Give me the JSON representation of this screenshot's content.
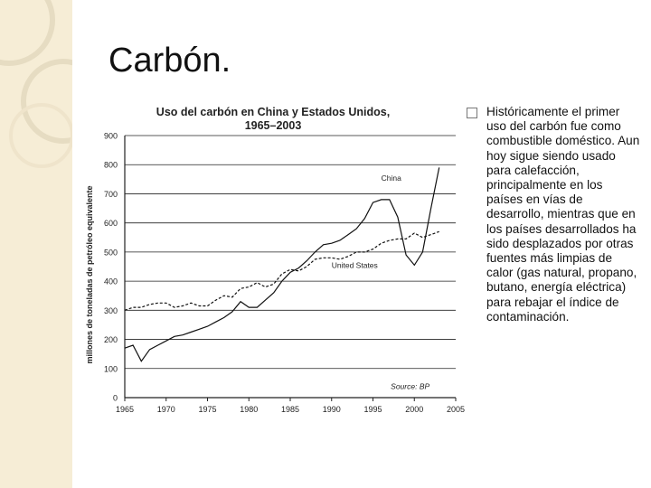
{
  "slide": {
    "title": "Carbón.",
    "bullet_icon": "square-bullet-icon",
    "bullet_text": "Históricamente el primer uso del carbón fue como combustible doméstico. Aun hoy sigue siendo usado para calefacción, principalmente en los países en vías de desarrollo, mientras que en los países desarrollados ha sido desplazados por otras fuentes más limpias de calor (gas natural, propano, butano, energía eléctrica) para rebajar el índice de contaminación."
  },
  "colors": {
    "band": "#f6edd6",
    "rings": "#e6dcc2",
    "axes": "#222222",
    "title": "#222222"
  },
  "chart_data": {
    "type": "line",
    "title": "Uso del carbón en China y Estados Unidos, 1965–2003",
    "xlabel": "",
    "ylabel": "millones de toneladas de petróleo equivalente",
    "xlim": [
      1965,
      2005
    ],
    "ylim": [
      0,
      900
    ],
    "x_ticks": [
      1965,
      1970,
      1975,
      1980,
      1985,
      1990,
      1995,
      2000,
      2005
    ],
    "y_ticks": [
      0,
      100,
      200,
      300,
      400,
      500,
      600,
      700,
      800,
      900
    ],
    "grid": "horizontal",
    "source": "Source: BP",
    "series": [
      {
        "name": "China",
        "line_style": "solid",
        "x": [
          1965,
          1966,
          1967,
          1968,
          1969,
          1970,
          1971,
          1972,
          1973,
          1974,
          1975,
          1976,
          1977,
          1978,
          1979,
          1980,
          1981,
          1982,
          1983,
          1984,
          1985,
          1986,
          1987,
          1988,
          1989,
          1990,
          1991,
          1992,
          1993,
          1994,
          1995,
          1996,
          1997,
          1998,
          1999,
          2000,
          2001,
          2002,
          2003
        ],
        "values": [
          170,
          180,
          125,
          165,
          180,
          195,
          210,
          215,
          225,
          235,
          245,
          260,
          275,
          295,
          330,
          310,
          310,
          335,
          360,
          400,
          430,
          445,
          470,
          500,
          525,
          530,
          540,
          560,
          580,
          615,
          670,
          680,
          680,
          620,
          490,
          455,
          500,
          650,
          790
        ]
      },
      {
        "name": "United States",
        "line_style": "dashed",
        "x": [
          1965,
          1966,
          1967,
          1968,
          1969,
          1970,
          1971,
          1972,
          1973,
          1974,
          1975,
          1976,
          1977,
          1978,
          1979,
          1980,
          1981,
          1982,
          1983,
          1984,
          1985,
          1986,
          1987,
          1988,
          1989,
          1990,
          1991,
          1992,
          1993,
          1994,
          1995,
          1996,
          1997,
          1998,
          1999,
          2000,
          2001,
          2002,
          2003
        ],
        "values": [
          300,
          310,
          310,
          320,
          325,
          325,
          310,
          315,
          325,
          315,
          315,
          335,
          350,
          345,
          375,
          380,
          395,
          380,
          390,
          425,
          440,
          435,
          450,
          475,
          480,
          480,
          475,
          485,
          500,
          500,
          510,
          530,
          540,
          545,
          545,
          565,
          550,
          560,
          570
        ]
      }
    ]
  }
}
